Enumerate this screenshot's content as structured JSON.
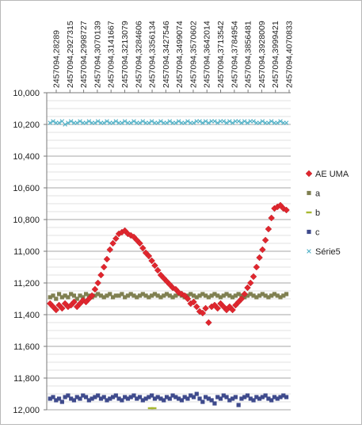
{
  "chart_data": {
    "type": "scatter",
    "title": "",
    "xlabel": "",
    "ylabel": "",
    "x_tick_labels": [
      "2457094,28289",
      "2457094,2927315",
      "2457094,2998727",
      "2457094,3070139",
      "2457094,3141667",
      "2457094,3213079",
      "2457094,3284606",
      "2457094,3356134",
      "2457094,3427546",
      "2457094,3499074",
      "2457094,3570602",
      "2457094,3642014",
      "2457094,3713542",
      "2457094,3784954",
      "2457094,3856481",
      "2457094,3928009",
      "2457094,3999421",
      "2457094,4070833"
    ],
    "xlim": [
      2457094.28,
      2457094.4105
    ],
    "ylim": [
      10.0,
      12.0
    ],
    "y_reversed": true,
    "y_ticks": [
      10.0,
      10.2,
      10.4,
      10.6,
      10.8,
      11.0,
      11.2,
      11.4,
      11.6,
      11.8,
      12.0
    ],
    "y_tick_labels": [
      "10,000",
      "10,200",
      "10,400",
      "10,600",
      "10,800",
      "11,000",
      "11,200",
      "11,400",
      "11,600",
      "11,800",
      "12,000"
    ],
    "grid": "horizontal",
    "legend_position": "right",
    "series": [
      {
        "name": "AE UMA",
        "color": "#e0262e",
        "marker": "diamond",
        "x": [
          2457094.2818,
          2457094.2834,
          2457094.285,
          2457094.2866,
          2457094.2882,
          2457094.2898,
          2457094.2914,
          2457094.293,
          2457094.2946,
          2457094.2962,
          2457094.2978,
          2457094.2994,
          2457094.301,
          2457094.3026,
          2457094.3042,
          2457094.3058,
          2457094.3074,
          2457094.309,
          2457094.3106,
          2457094.3122,
          2457094.3138,
          2457094.3154,
          2457094.317,
          2457094.3186,
          2457094.3202,
          2457094.3218,
          2457094.3234,
          2457094.325,
          2457094.3266,
          2457094.3282,
          2457094.3298,
          2457094.3314,
          2457094.333,
          2457094.3346,
          2457094.3362,
          2457094.3378,
          2457094.3394,
          2457094.341,
          2457094.3426,
          2457094.3442,
          2457094.3458,
          2457094.3474,
          2457094.349,
          2457094.3506,
          2457094.3522,
          2457094.3538,
          2457094.3554,
          2457094.357,
          2457094.3586,
          2457094.3602,
          2457094.3618,
          2457094.3634,
          2457094.365,
          2457094.3666,
          2457094.3682,
          2457094.3698,
          2457094.3714,
          2457094.373,
          2457094.3746,
          2457094.3762,
          2457094.3778,
          2457094.3794,
          2457094.381,
          2457094.3826,
          2457094.3842,
          2457094.3858,
          2457094.3874,
          2457094.389,
          2457094.3906,
          2457094.3922,
          2457094.3938,
          2457094.3954,
          2457094.397,
          2457094.3986,
          2457094.4002,
          2457094.4018,
          2457094.4034,
          2457094.405,
          2457094.4066,
          2457094.4082
        ],
        "y": [
          11.33,
          11.35,
          11.37,
          11.34,
          11.36,
          11.33,
          11.35,
          11.34,
          11.32,
          11.35,
          11.33,
          11.31,
          11.32,
          11.3,
          11.28,
          11.24,
          11.2,
          11.15,
          11.1,
          11.05,
          10.99,
          10.95,
          10.92,
          10.89,
          10.88,
          10.87,
          10.89,
          10.9,
          10.91,
          10.93,
          10.95,
          10.98,
          11.01,
          11.03,
          11.06,
          11.09,
          11.12,
          11.15,
          11.17,
          11.19,
          11.21,
          11.23,
          11.24,
          11.26,
          11.27,
          11.28,
          11.3,
          11.33,
          11.32,
          11.35,
          11.38,
          11.39,
          11.36,
          11.45,
          11.35,
          11.34,
          11.36,
          11.33,
          11.35,
          11.37,
          11.35,
          11.37,
          11.34,
          11.32,
          11.3,
          11.27,
          11.23,
          11.2,
          11.16,
          11.1,
          11.04,
          10.99,
          10.93,
          10.86,
          10.79,
          10.73,
          10.72,
          10.71,
          10.73,
          10.74
        ]
      },
      {
        "name": "a",
        "color": "#7f7f50",
        "marker": "square",
        "x": [
          2457094.2818,
          2457094.2834,
          2457094.285,
          2457094.2866,
          2457094.2882,
          2457094.2898,
          2457094.2914,
          2457094.293,
          2457094.2946,
          2457094.2962,
          2457094.2978,
          2457094.2994,
          2457094.301,
          2457094.3026,
          2457094.3042,
          2457094.3058,
          2457094.3074,
          2457094.309,
          2457094.3106,
          2457094.3122,
          2457094.3138,
          2457094.3154,
          2457094.317,
          2457094.3186,
          2457094.3202,
          2457094.3218,
          2457094.3234,
          2457094.325,
          2457094.3266,
          2457094.3282,
          2457094.3298,
          2457094.3314,
          2457094.333,
          2457094.3346,
          2457094.3362,
          2457094.3378,
          2457094.3394,
          2457094.341,
          2457094.3426,
          2457094.3442,
          2457094.3458,
          2457094.3474,
          2457094.349,
          2457094.3506,
          2457094.3522,
          2457094.3538,
          2457094.3554,
          2457094.357,
          2457094.3586,
          2457094.3602,
          2457094.3618,
          2457094.3634,
          2457094.365,
          2457094.3666,
          2457094.3682,
          2457094.3698,
          2457094.3714,
          2457094.373,
          2457094.3746,
          2457094.3762,
          2457094.3778,
          2457094.3794,
          2457094.381,
          2457094.3826,
          2457094.3842,
          2457094.3858,
          2457094.3874,
          2457094.389,
          2457094.3906,
          2457094.3922,
          2457094.3938,
          2457094.3954,
          2457094.397,
          2457094.3986,
          2457094.4002,
          2457094.4018,
          2457094.4034,
          2457094.405,
          2457094.4066,
          2457094.4082
        ],
        "y": [
          11.29,
          11.28,
          11.3,
          11.27,
          11.29,
          11.28,
          11.29,
          11.27,
          11.28,
          11.3,
          11.28,
          11.29,
          11.27,
          11.28,
          11.29,
          11.28,
          11.27,
          11.28,
          11.29,
          11.28,
          11.27,
          11.29,
          11.28,
          11.28,
          11.27,
          11.29,
          11.28,
          11.27,
          11.28,
          11.29,
          11.28,
          11.27,
          11.28,
          11.29,
          11.28,
          11.27,
          11.28,
          11.29,
          11.28,
          11.27,
          11.28,
          11.29,
          11.28,
          11.27,
          11.28,
          11.29,
          11.28,
          11.27,
          11.28,
          11.29,
          11.28,
          11.27,
          11.28,
          11.29,
          11.28,
          11.27,
          11.28,
          11.29,
          11.28,
          11.27,
          11.28,
          11.29,
          11.28,
          11.27,
          11.28,
          11.29,
          11.28,
          11.27,
          11.28,
          11.29,
          11.28,
          11.27,
          11.28,
          11.29,
          11.28,
          11.27,
          11.28,
          11.29,
          11.28,
          11.27
        ]
      },
      {
        "name": "b",
        "color": "#a8b830",
        "marker": "dash",
        "x": [
          2457094.3356,
          2457094.3372
        ],
        "y": [
          11.99,
          11.99
        ]
      },
      {
        "name": "c",
        "color": "#3e4a8c",
        "marker": "square",
        "x": [
          2457094.2818,
          2457094.2834,
          2457094.285,
          2457094.2866,
          2457094.2882,
          2457094.2898,
          2457094.2914,
          2457094.293,
          2457094.2946,
          2457094.2962,
          2457094.2978,
          2457094.2994,
          2457094.301,
          2457094.3026,
          2457094.3042,
          2457094.3058,
          2457094.3074,
          2457094.309,
          2457094.3106,
          2457094.3122,
          2457094.3138,
          2457094.3154,
          2457094.317,
          2457094.3186,
          2457094.3202,
          2457094.3218,
          2457094.3234,
          2457094.325,
          2457094.3266,
          2457094.3282,
          2457094.3298,
          2457094.3314,
          2457094.333,
          2457094.3346,
          2457094.3362,
          2457094.3378,
          2457094.3394,
          2457094.341,
          2457094.3426,
          2457094.3442,
          2457094.3458,
          2457094.3474,
          2457094.349,
          2457094.3506,
          2457094.3522,
          2457094.3538,
          2457094.3554,
          2457094.357,
          2457094.3586,
          2457094.3602,
          2457094.3618,
          2457094.3634,
          2457094.365,
          2457094.3666,
          2457094.3682,
          2457094.3698,
          2457094.3714,
          2457094.373,
          2457094.3746,
          2457094.3762,
          2457094.3778,
          2457094.3794,
          2457094.381,
          2457094.3826,
          2457094.3842,
          2457094.3858,
          2457094.3874,
          2457094.389,
          2457094.3906,
          2457094.3922,
          2457094.3938,
          2457094.3954,
          2457094.397,
          2457094.3986,
          2457094.4002,
          2457094.4018,
          2457094.4034,
          2457094.405,
          2457094.4066,
          2457094.4082
        ],
        "y": [
          11.93,
          11.92,
          11.94,
          11.93,
          11.95,
          11.92,
          11.91,
          11.93,
          11.94,
          11.92,
          11.93,
          11.91,
          11.92,
          11.94,
          11.93,
          11.92,
          11.91,
          11.93,
          11.92,
          11.94,
          11.93,
          11.92,
          11.91,
          11.93,
          11.94,
          11.92,
          11.93,
          11.92,
          11.91,
          11.93,
          11.92,
          11.94,
          11.93,
          11.92,
          11.91,
          11.93,
          11.92,
          11.93,
          11.94,
          11.92,
          11.93,
          11.91,
          11.92,
          11.93,
          11.94,
          11.92,
          11.93,
          11.91,
          11.92,
          11.9,
          11.93,
          11.95,
          11.92,
          11.93,
          11.94,
          11.96,
          11.92,
          11.93,
          11.91,
          11.92,
          11.94,
          11.93,
          11.92,
          11.97,
          11.93,
          11.92,
          11.91,
          11.93,
          11.94,
          11.92,
          11.93,
          11.92,
          11.91,
          11.93,
          11.94,
          11.92,
          11.93,
          11.92,
          11.91,
          11.92
        ]
      },
      {
        "name": "Série5",
        "color": "#4fb0c6",
        "marker": "x",
        "x": [
          2457094.2818,
          2457094.2834,
          2457094.285,
          2457094.2866,
          2457094.2882,
          2457094.2898,
          2457094.2914,
          2457094.293,
          2457094.2946,
          2457094.2962,
          2457094.2978,
          2457094.2994,
          2457094.301,
          2457094.3026,
          2457094.3042,
          2457094.3058,
          2457094.3074,
          2457094.309,
          2457094.3106,
          2457094.3122,
          2457094.3138,
          2457094.3154,
          2457094.317,
          2457094.3186,
          2457094.3202,
          2457094.3218,
          2457094.3234,
          2457094.325,
          2457094.3266,
          2457094.3282,
          2457094.3298,
          2457094.3314,
          2457094.333,
          2457094.3346,
          2457094.3362,
          2457094.3378,
          2457094.3394,
          2457094.341,
          2457094.3426,
          2457094.3442,
          2457094.3458,
          2457094.3474,
          2457094.349,
          2457094.3506,
          2457094.3522,
          2457094.3538,
          2457094.3554,
          2457094.357,
          2457094.3586,
          2457094.3602,
          2457094.3618,
          2457094.3634,
          2457094.365,
          2457094.3666,
          2457094.3682,
          2457094.3698,
          2457094.3714,
          2457094.373,
          2457094.3746,
          2457094.3762,
          2457094.3778,
          2457094.3794,
          2457094.381,
          2457094.3826,
          2457094.3842,
          2457094.3858,
          2457094.3874,
          2457094.389,
          2457094.3906,
          2457094.3922,
          2457094.3938,
          2457094.3954,
          2457094.397,
          2457094.3986,
          2457094.4002,
          2457094.4018,
          2457094.4034,
          2457094.405,
          2457094.4066,
          2457094.4082
        ],
        "y": [
          10.19,
          10.18,
          10.19,
          10.19,
          10.18,
          10.2,
          10.19,
          10.18,
          10.19,
          10.19,
          10.18,
          10.19,
          10.19,
          10.18,
          10.19,
          10.19,
          10.18,
          10.19,
          10.19,
          10.18,
          10.19,
          10.19,
          10.18,
          10.19,
          10.19,
          10.18,
          10.19,
          10.19,
          10.18,
          10.19,
          10.19,
          10.18,
          10.19,
          10.19,
          10.18,
          10.19,
          10.19,
          10.18,
          10.19,
          10.19,
          10.18,
          10.19,
          10.19,
          10.18,
          10.19,
          10.19,
          10.18,
          10.19,
          10.19,
          10.18,
          10.18,
          10.19,
          10.18,
          10.19,
          10.18,
          10.18,
          10.19,
          10.18,
          10.18,
          10.19,
          10.18,
          10.19,
          10.18,
          10.18,
          10.19,
          10.18,
          10.19,
          10.18,
          10.18,
          10.19,
          10.19,
          10.18,
          10.19,
          10.19,
          10.18,
          10.19,
          10.19,
          10.18,
          10.19,
          10.19
        ]
      }
    ]
  }
}
